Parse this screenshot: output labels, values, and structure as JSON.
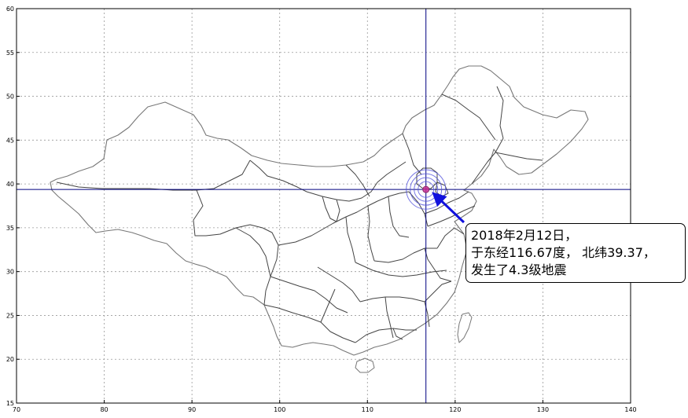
{
  "chart_data": {
    "type": "map",
    "xlim": [
      70,
      140
    ],
    "ylim": [
      15,
      60
    ],
    "x_ticks": [
      70,
      80,
      90,
      100,
      110,
      120,
      130,
      140
    ],
    "y_ticks": [
      15,
      20,
      25,
      30,
      35,
      40,
      45,
      50,
      55,
      60
    ],
    "grid": true,
    "grid_style": "dotted",
    "crosshair": {
      "lon": 116.67,
      "lat": 39.37,
      "color": "#000080"
    },
    "epicenter": {
      "lon": 116.67,
      "lat": 39.37,
      "rings": 4,
      "ring_color": "#5555dd",
      "center_color": "#cc3399"
    },
    "arrow_color": "#1010dd",
    "annotation": {
      "lines": [
        "2018年2月12日，",
        "于东经116.67度， 北纬39.37，",
        "发生了4.3级地震"
      ]
    }
  }
}
